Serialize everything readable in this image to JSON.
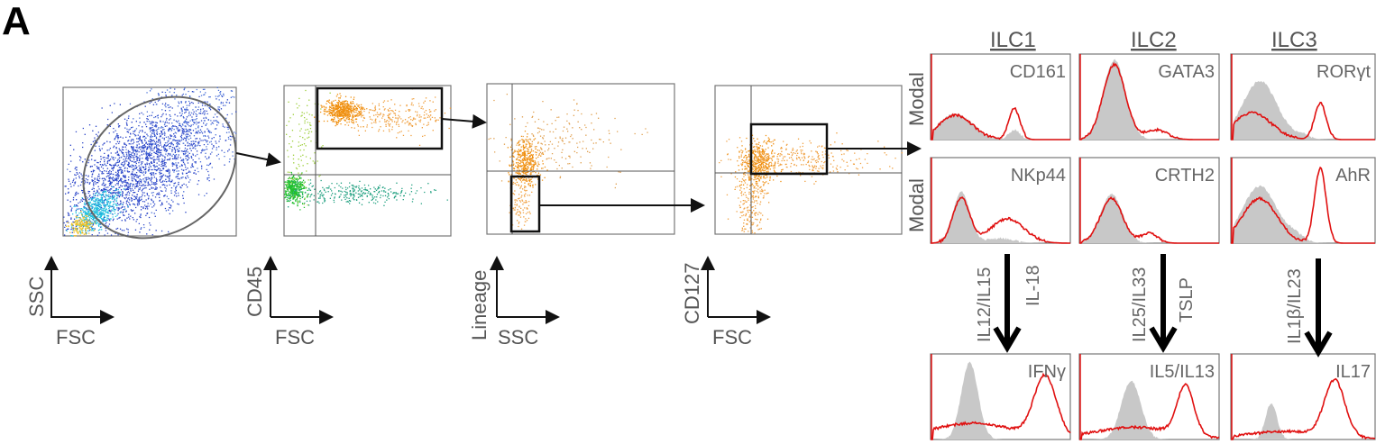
{
  "panel_letter": "A",
  "gating": [
    {
      "y_label": "SSC",
      "x_label": "FSC",
      "gate": "ellipse"
    },
    {
      "y_label": "CD45",
      "x_label": "FSC",
      "gate": "rectangle"
    },
    {
      "y_label": "Lineage",
      "x_label": "SSC",
      "gate": "rectangle"
    },
    {
      "y_label": "CD127",
      "x_label": "FSC",
      "gate": "rectangle"
    }
  ],
  "histogram_y_label": "Modal",
  "columns": [
    {
      "title": "ILC1",
      "markers": [
        "CD161",
        "NKp44"
      ],
      "stimuli_left": "IL12/IL15",
      "stimuli_right": "IL-18",
      "cytokine": "IFNγ"
    },
    {
      "title": "ILC2",
      "markers": [
        "GATA3",
        "CRTH2"
      ],
      "stimuli_left": "IL25/IL33",
      "stimuli_right": "TSLP",
      "cytokine": "IL5/IL13"
    },
    {
      "title": "ILC3",
      "markers": [
        "RORγt",
        "AhR"
      ],
      "stimuli_left": "IL1β/IL23",
      "stimuli_right": "",
      "cytokine": "IL17"
    }
  ],
  "colors": {
    "sample": "#e01010",
    "control": "#c8c8c8",
    "gate": "#111111"
  }
}
